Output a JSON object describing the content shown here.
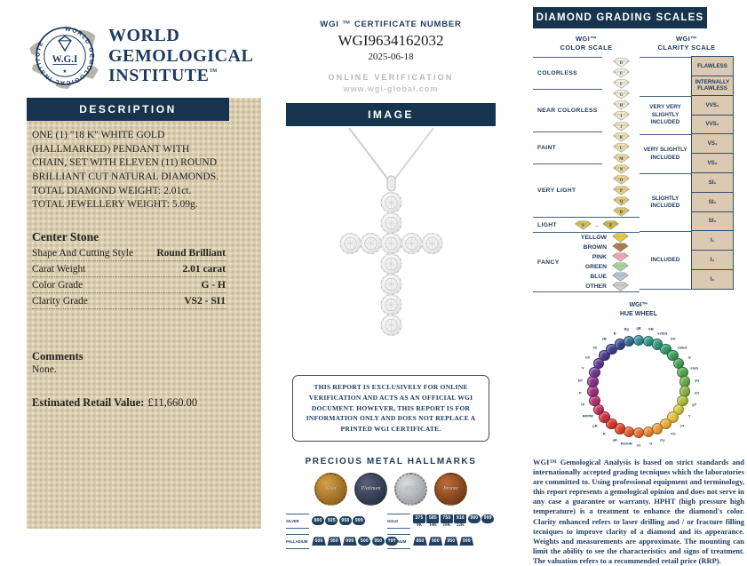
{
  "brand": {
    "monogram": "W.G.I",
    "ring_text": "WORLD GEMOLOGICAL INSTITUTE",
    "name_line1": "WORLD",
    "name_line2": "GEMOLOGICAL",
    "name_line3": "INSTITUTE",
    "trademark": "™"
  },
  "description_panel": {
    "header": "DESCRIPTION",
    "body": "ONE (1) \"18 K\" WHITE GOLD (HALLMARKED) PENDANT WITH CHAIN, SET WITH ELEVEN (11) ROUND BRILLIANT CUT NATURAL DIAMONDS. TOTAL DIAMOND WEIGHT: 2.01ct. TOTAL JEWELLERY WEIGHT: 5.09g.",
    "center_stone_title": "Center Stone",
    "center_stone_rows": [
      {
        "label": "Shape And Cutting Style",
        "value": "Round Brilliant"
      },
      {
        "label": "Carat Weight",
        "value": "2.01 carat"
      },
      {
        "label": "Color Grade",
        "value": "G - H"
      },
      {
        "label": "Clarity Grade",
        "value": "VS2 - SI1"
      }
    ],
    "comments_title": "Comments",
    "comments_value": "None.",
    "retail_label": "Estimated Retail Value:",
    "retail_value": "£11,660.00"
  },
  "certificate": {
    "number_header": "WGI ™ CERTIFICATE NUMBER",
    "number": "WGI9634162032",
    "date": "2025-06-18",
    "online_verification_label": "ONLINE VERIFICATION",
    "website": "www.wgi-global.com",
    "image_header": "IMAGE",
    "disclaimer": "THIS REPORT IS EXCLUSIVELY FOR ONLINE VERIFICATION AND ACTS AS AN OFFICIAL WGI DOCUMENT. HOWEVER, THIS REPORT IS FOR INFORMATION ONLY AND DOES NOT REPLACE A PRINTED WGI CERTIFICATE."
  },
  "hallmarks": {
    "title": "PRECIOUS METAL HALLMARKS",
    "coins": [
      {
        "name": "Gold",
        "c1": "#d79e42",
        "c2": "#7c5518"
      },
      {
        "name": "Platinum",
        "c1": "#55607a",
        "c2": "#1f2736"
      },
      {
        "name": "Silver",
        "c1": "#dcdcdc",
        "c2": "#898f99"
      },
      {
        "name": "Bronze",
        "c1": "#bd6c35",
        "c2": "#5f2d10"
      }
    ],
    "groups": [
      {
        "metal": "SILVER",
        "stamps": [
          {
            "t": "800",
            "shape": "oval"
          },
          {
            "t": "925",
            "shape": "oval"
          },
          {
            "t": "958",
            "shape": "oval"
          },
          {
            "t": "999",
            "shape": "oval"
          }
        ]
      },
      {
        "metal": "GOLD",
        "stamps": [
          {
            "t": "375",
            "sub": "9K",
            "shape": "rect"
          },
          {
            "t": "585",
            "sub": "14K",
            "shape": "rect"
          },
          {
            "t": "750",
            "sub": "18K",
            "shape": "rect"
          },
          {
            "t": "916",
            "sub": "22K",
            "shape": "rect"
          },
          {
            "t": "990",
            "shape": "oval"
          },
          {
            "t": "999",
            "shape": "oval"
          }
        ]
      },
      {
        "metal": "PALLADIUM",
        "stamps": [
          {
            "t": "500",
            "shape": "trap"
          },
          {
            "t": "950",
            "shape": "trap"
          },
          {
            "t": "999",
            "shape": "trap"
          },
          {
            "t": "500",
            "shape": "oval"
          },
          {
            "t": "950",
            "shape": "oval"
          },
          {
            "t": "999",
            "shape": "oval"
          }
        ]
      },
      {
        "metal": "PLATINUM",
        "stamps": [
          {
            "t": "850",
            "shape": "trap"
          },
          {
            "t": "900",
            "shape": "trap"
          },
          {
            "t": "950",
            "shape": "trap"
          },
          {
            "t": "999",
            "shape": "trap"
          }
        ]
      }
    ]
  },
  "grading": {
    "header": "DIAMOND GRADING SCALES",
    "color_title_1": "WGI™",
    "color_title_2": "COLOR SCALE",
    "clarity_title_1": "WGI™",
    "clarity_title_2": "CLARITY SCALE",
    "color_groups": [
      {
        "label": "COLORLESS",
        "grades": [
          "D",
          "E",
          "F"
        ]
      },
      {
        "label": "NEAR COLORLESS",
        "grades": [
          "G",
          "H",
          "I",
          "J"
        ]
      },
      {
        "label": "FAINT",
        "grades": [
          "K",
          "L",
          "M"
        ]
      },
      {
        "label": "VERY LIGHT",
        "grades": [
          "N",
          "O",
          "P",
          "Q",
          "R"
        ]
      },
      {
        "label": "LIGHT",
        "range": [
          "S",
          "Z"
        ]
      },
      {
        "label": "FANCY",
        "fancy": [
          {
            "name": "YELLOW",
            "fill": "#e9cb3a"
          },
          {
            "name": "BROWN",
            "fill": "#ab7c4d"
          },
          {
            "name": "PINK",
            "fill": "#efa9bc"
          },
          {
            "name": "GREEN",
            "fill": "#a6d79e"
          },
          {
            "name": "BLUE",
            "fill": "#b7c6da"
          },
          {
            "name": "OTHER",
            "fill": "#cfcfcf"
          }
        ]
      }
    ],
    "grade_fills": {
      "D": "#f3f3ef",
      "E": "#f3f2ec",
      "F": "#f2f1e8",
      "G": "#f2efe2",
      "H": "#f1edda",
      "I": "#f0ead1",
      "J": "#efe7c8",
      "K": "#eee4bf",
      "L": "#ece0b4",
      "M": "#eadca9",
      "N": "#e8d89e",
      "O": "#e6d493",
      "P": "#e4cf88",
      "Q": "#e1cb7d",
      "R": "#dfc672",
      "S": "#d9bf5f",
      "Z": "#cfb348"
    },
    "clarity_groups": [
      {
        "label": "",
        "cells": [
          "FLAWLESS",
          "INTERNALLY FLAWLESS"
        ]
      },
      {
        "label": "VERY VERY SLIGHTLY INCLUDED",
        "cells": [
          "VVS₁",
          "VVS₂"
        ]
      },
      {
        "label": "VERY SLIGHTLY INCLUDED",
        "cells": [
          "VS₁",
          "VS₂"
        ]
      },
      {
        "label": "SLIGHTLY INCLUDED",
        "cells": [
          "SI₁",
          "SI₂",
          "SI₃"
        ]
      },
      {
        "label": "INCLUDED",
        "cells": [
          "I₁",
          "I₂",
          "I₃"
        ]
      }
    ]
  },
  "hue_wheel": {
    "title_1": "WGI™",
    "title_2": "HUE WHEEL",
    "dots": [
      {
        "label": "gB",
        "color": "#2e8e96"
      },
      {
        "label": "GB",
        "color": "#2b9287"
      },
      {
        "label": "vstbG",
        "color": "#2e9578"
      },
      {
        "label": "bG",
        "color": "#2f9768"
      },
      {
        "label": "vslbG",
        "color": "#389c5b"
      },
      {
        "label": "G",
        "color": "#41a050"
      },
      {
        "label": "slyG",
        "color": "#4ea649"
      },
      {
        "label": "yG",
        "color": "#63ab43"
      },
      {
        "label": "GY",
        "color": "#85b23d"
      },
      {
        "label": "gY",
        "color": "#aebe3b"
      },
      {
        "label": "Y",
        "color": "#d8c83e"
      },
      {
        "label": "oY",
        "color": "#e5c139"
      },
      {
        "label": "YO",
        "color": "#eaad35"
      },
      {
        "label": "Oy",
        "color": "#ec9a32"
      },
      {
        "label": "O",
        "color": "#ed862f"
      },
      {
        "label": "rO",
        "color": "#ea6f2c"
      },
      {
        "label": "RO/OR",
        "color": "#e55a2a"
      },
      {
        "label": "oR",
        "color": "#df4628"
      },
      {
        "label": "R",
        "color": "#d83427"
      },
      {
        "label": "pR",
        "color": "#cf2f3d"
      },
      {
        "label": "RP/PR",
        "color": "#c22e55"
      },
      {
        "label": "rP",
        "color": "#b22e6b"
      },
      {
        "label": "P",
        "color": "#9d2f7c"
      },
      {
        "label": "bP",
        "color": "#86328a"
      },
      {
        "label": "V",
        "color": "#6f3392"
      },
      {
        "label": "bV",
        "color": "#5b3495"
      },
      {
        "label": "Vb",
        "color": "#4b3794"
      },
      {
        "label": "vB",
        "color": "#3d3e91"
      },
      {
        "label": "B",
        "color": "#34478d"
      },
      {
        "label": "Bg",
        "color": "#326a92"
      }
    ]
  },
  "footer": {
    "text": "WGI™ Gemological Analysis is based on strict standards and internationally accepted grading tecniques which the laboratories are committed to. Using professional equipment and terminology, this report represents a gemological opinion and does not serve in any case a guarantee or warranty. HPHT (high pressure high temperature) is a treatment to enhance the diamond's color. Clarity enhanced refers to laser drilling and / or fracture filling tecniques to improve clarity of a diamond and its appearance. Weights and measurements are approximate. The mounting can limit the ability to see the characteristics and signs of treatment. The valuation refers to a recommended retail price (RRP)."
  },
  "colors": {
    "navy_bar": "#16344e",
    "navy_text": "#1b3a5c",
    "panel_beige": "#d9cdb2",
    "cell_beige": "#dcc9b2"
  }
}
